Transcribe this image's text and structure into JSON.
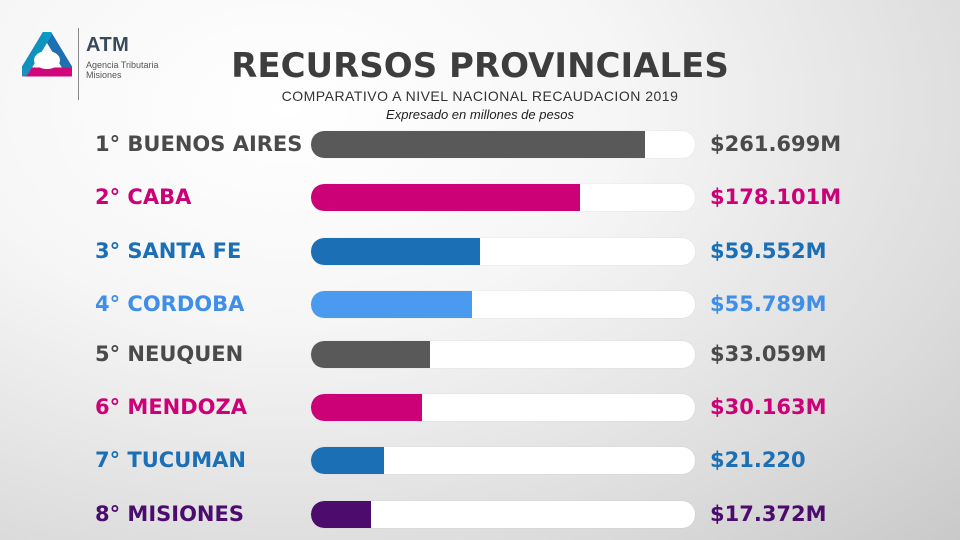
{
  "logo": {
    "brand": "ATM",
    "line1": "Agencia Tributaria",
    "line2": "Misiones",
    "colors": [
      "#5b2b86",
      "#1f6fb3",
      "#d0077a",
      "#00a6c8"
    ]
  },
  "header": {
    "title": "RECURSOS PROVINCIALES",
    "subtitle": "COMPARATIVO A NIVEL NACIONAL RECAUDACION 2019",
    "note": "Expresado en  millones de pesos"
  },
  "chart_data": {
    "type": "bar",
    "orientation": "horizontal",
    "title": "RECURSOS PROVINCIALES",
    "subtitle": "COMPARATIVO A NIVEL NACIONAL RECAUDACION 2019",
    "unit_note": "Expresado en  millones de pesos",
    "categories": [
      "1° BUENOS AIRES",
      "2° CABA",
      "3° SANTA FE",
      "4° CORDOBA",
      "5° NEUQUEN",
      "6° MENDOZA",
      "7° TUCUMAN",
      "8° MISIONES"
    ],
    "values": [
      261.699,
      178.101,
      59.552,
      55.789,
      33.059,
      30.163,
      21.22,
      17.372
    ],
    "value_labels": [
      "$261.699M",
      "$178.101M",
      "$59.552M",
      "$55.789M",
      "$33.059M",
      "$30.163M",
      "$21.220",
      "$17.372M"
    ],
    "bar_fill_fraction": [
      0.87,
      0.7,
      0.44,
      0.42,
      0.31,
      0.29,
      0.19,
      0.155
    ],
    "colors": [
      "#595959",
      "#cc0077",
      "#1a6fb5",
      "#4a9bf0",
      "#595959",
      "#cc0077",
      "#1a6fb5",
      "#4b0c6e"
    ],
    "label_colors": [
      "#4a4a4a",
      "#cc0077",
      "#1a6fb5",
      "#3f8fe8",
      "#4a4a4a",
      "#cc0077",
      "#1a6fb5",
      "#4b0c6e"
    ],
    "grid": false,
    "legend": "none"
  }
}
